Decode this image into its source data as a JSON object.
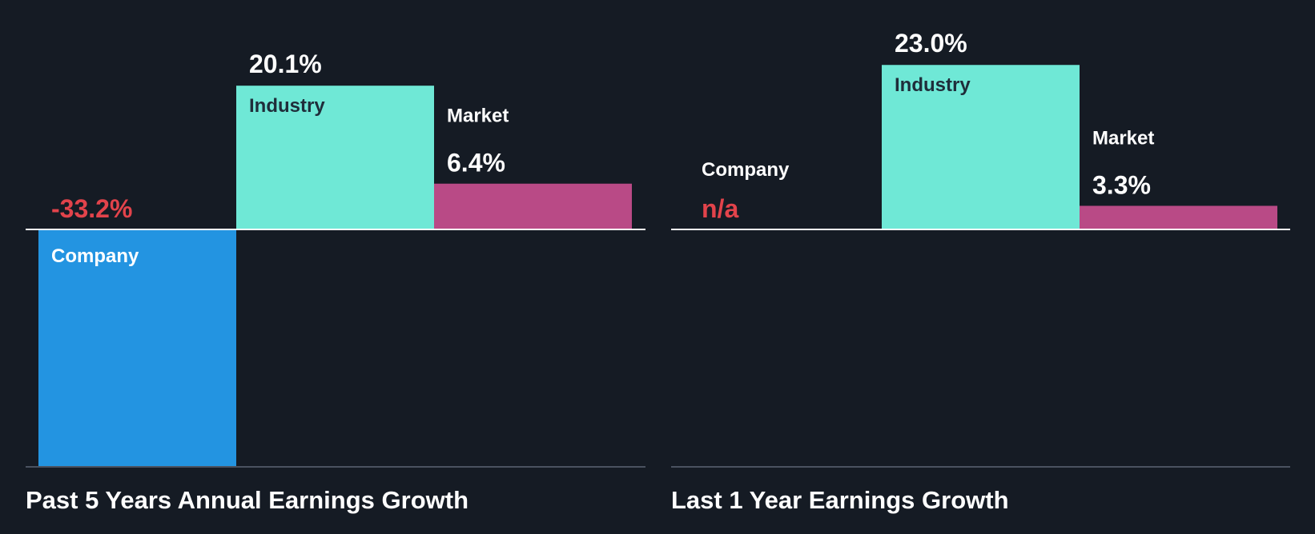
{
  "colors": {
    "background": "#151b24",
    "company": "#2394e1",
    "industry": "#6fe8d6",
    "market": "#b94a86",
    "negative": "#e2434b",
    "baseline": "#ffffff",
    "axis": "#4a5260"
  },
  "chart_data": [
    {
      "type": "bar",
      "title": "Past 5 Years Annual Earnings Growth",
      "categories": [
        "Company",
        "Industry",
        "Market"
      ],
      "values": [
        -33.2,
        20.1,
        6.4
      ],
      "value_labels": [
        "-33.2%",
        "20.1%",
        "6.4%"
      ],
      "ylim": [
        -33.2,
        23.0
      ]
    },
    {
      "type": "bar",
      "title": "Last 1 Year Earnings Growth",
      "categories": [
        "Company",
        "Industry",
        "Market"
      ],
      "values": [
        null,
        23.0,
        3.3
      ],
      "value_labels": [
        "n/a",
        "23.0%",
        "3.3%"
      ],
      "ylim": [
        -33.2,
        23.0
      ]
    }
  ]
}
